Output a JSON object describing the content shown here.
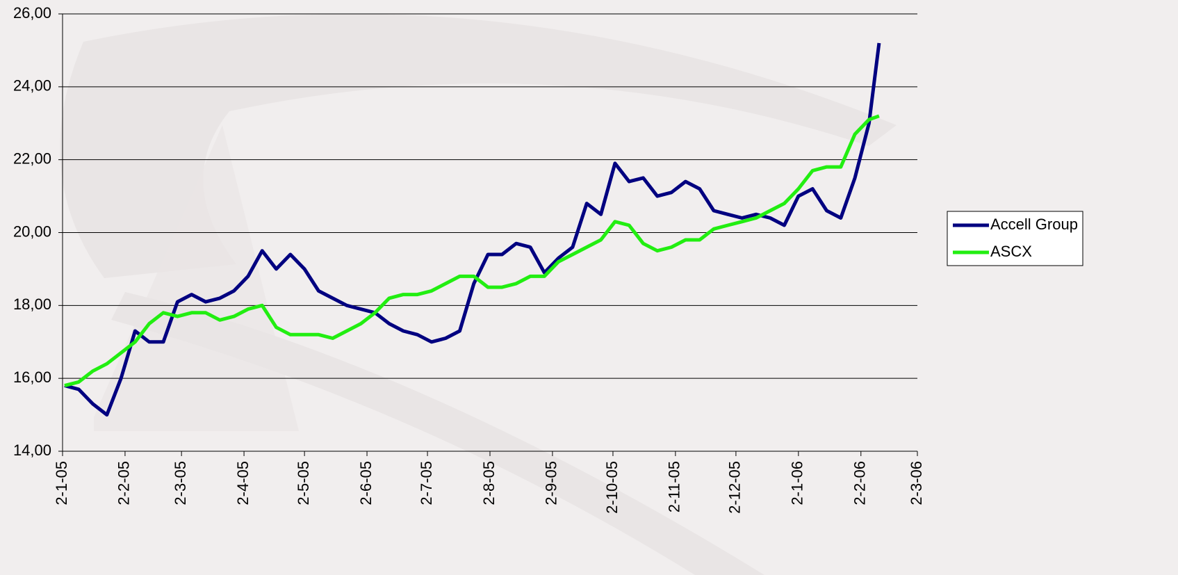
{
  "chart_data": {
    "type": "line",
    "x": [
      "2005-01-03",
      "2005-01-10",
      "2005-01-17",
      "2005-01-24",
      "2005-01-31",
      "2005-02-07",
      "2005-02-14",
      "2005-02-21",
      "2005-02-28",
      "2005-03-07",
      "2005-03-14",
      "2005-03-21",
      "2005-03-28",
      "2005-04-04",
      "2005-04-11",
      "2005-04-18",
      "2005-04-25",
      "2005-05-02",
      "2005-05-09",
      "2005-05-16",
      "2005-05-23",
      "2005-05-30",
      "2005-06-06",
      "2005-06-13",
      "2005-06-20",
      "2005-06-27",
      "2005-07-04",
      "2005-07-11",
      "2005-07-18",
      "2005-07-25",
      "2005-08-01",
      "2005-08-08",
      "2005-08-15",
      "2005-08-22",
      "2005-08-29",
      "2005-09-05",
      "2005-09-12",
      "2005-09-19",
      "2005-09-26",
      "2005-10-03",
      "2005-10-10",
      "2005-10-17",
      "2005-10-24",
      "2005-10-31",
      "2005-11-07",
      "2005-11-14",
      "2005-11-21",
      "2005-11-28",
      "2005-12-05",
      "2005-12-12",
      "2005-12-19",
      "2005-12-26",
      "2006-01-02",
      "2006-01-09",
      "2006-01-16",
      "2006-01-23",
      "2006-01-30",
      "2006-02-06",
      "2006-02-11"
    ],
    "series": [
      {
        "name": "Accell Group",
        "color": "#000080",
        "values": [
          15.8,
          15.7,
          15.3,
          15.0,
          16.0,
          17.3,
          17.0,
          17.0,
          18.1,
          18.3,
          18.1,
          18.2,
          18.4,
          18.8,
          19.5,
          19.0,
          19.4,
          19.0,
          18.4,
          18.2,
          18.0,
          17.9,
          17.8,
          17.5,
          17.3,
          17.2,
          17.0,
          17.1,
          17.3,
          18.6,
          19.4,
          19.4,
          19.7,
          19.6,
          18.9,
          19.3,
          19.6,
          20.8,
          20.5,
          21.9,
          21.4,
          21.5,
          21.0,
          21.1,
          21.4,
          21.2,
          20.6,
          20.5,
          20.4,
          20.5,
          20.4,
          20.2,
          21.0,
          21.2,
          20.6,
          20.4,
          21.5,
          23.0,
          25.2
        ]
      },
      {
        "name": "ASCX",
        "color": "#22ee11",
        "values": [
          15.8,
          15.9,
          16.2,
          16.4,
          16.7,
          17.0,
          17.5,
          17.8,
          17.7,
          17.8,
          17.8,
          17.6,
          17.7,
          17.9,
          18.0,
          17.4,
          17.2,
          17.2,
          17.2,
          17.1,
          17.3,
          17.5,
          17.8,
          18.2,
          18.3,
          18.3,
          18.4,
          18.6,
          18.8,
          18.8,
          18.5,
          18.5,
          18.6,
          18.8,
          18.8,
          19.2,
          19.4,
          19.6,
          19.8,
          20.3,
          20.2,
          19.7,
          19.5,
          19.6,
          19.8,
          19.8,
          20.1,
          20.2,
          20.3,
          20.4,
          20.6,
          20.8,
          21.2,
          21.7,
          21.8,
          21.8,
          22.7,
          23.1,
          23.2
        ]
      }
    ],
    "xlim": [
      "2005-01-02",
      "2006-03-02"
    ],
    "xticks": [
      {
        "value": "2005-01-02",
        "label": "2-1-05"
      },
      {
        "value": "2005-02-02",
        "label": "2-2-05"
      },
      {
        "value": "2005-03-02",
        "label": "2-3-05"
      },
      {
        "value": "2005-04-02",
        "label": "2-4-05"
      },
      {
        "value": "2005-05-02",
        "label": "2-5-05"
      },
      {
        "value": "2005-06-02",
        "label": "2-6-05"
      },
      {
        "value": "2005-07-02",
        "label": "2-7-05"
      },
      {
        "value": "2005-08-02",
        "label": "2-8-05"
      },
      {
        "value": "2005-09-02",
        "label": "2-9-05"
      },
      {
        "value": "2005-10-02",
        "label": "2-10-05"
      },
      {
        "value": "2005-11-02",
        "label": "2-11-05"
      },
      {
        "value": "2005-12-02",
        "label": "2-12-05"
      },
      {
        "value": "2006-01-02",
        "label": "2-1-06"
      },
      {
        "value": "2006-02-02",
        "label": "2-2-06"
      },
      {
        "value": "2006-03-02",
        "label": "2-3-06"
      }
    ],
    "ylim": [
      14,
      26
    ],
    "yticks": [
      {
        "value": 14,
        "label": "14,00"
      },
      {
        "value": 16,
        "label": "16,00"
      },
      {
        "value": 18,
        "label": "18,00"
      },
      {
        "value": 20,
        "label": "20,00"
      },
      {
        "value": 22,
        "label": "22,00"
      },
      {
        "value": 24,
        "label": "24,00"
      },
      {
        "value": 26,
        "label": "26,00"
      }
    ],
    "grid": true,
    "legend": "right"
  }
}
